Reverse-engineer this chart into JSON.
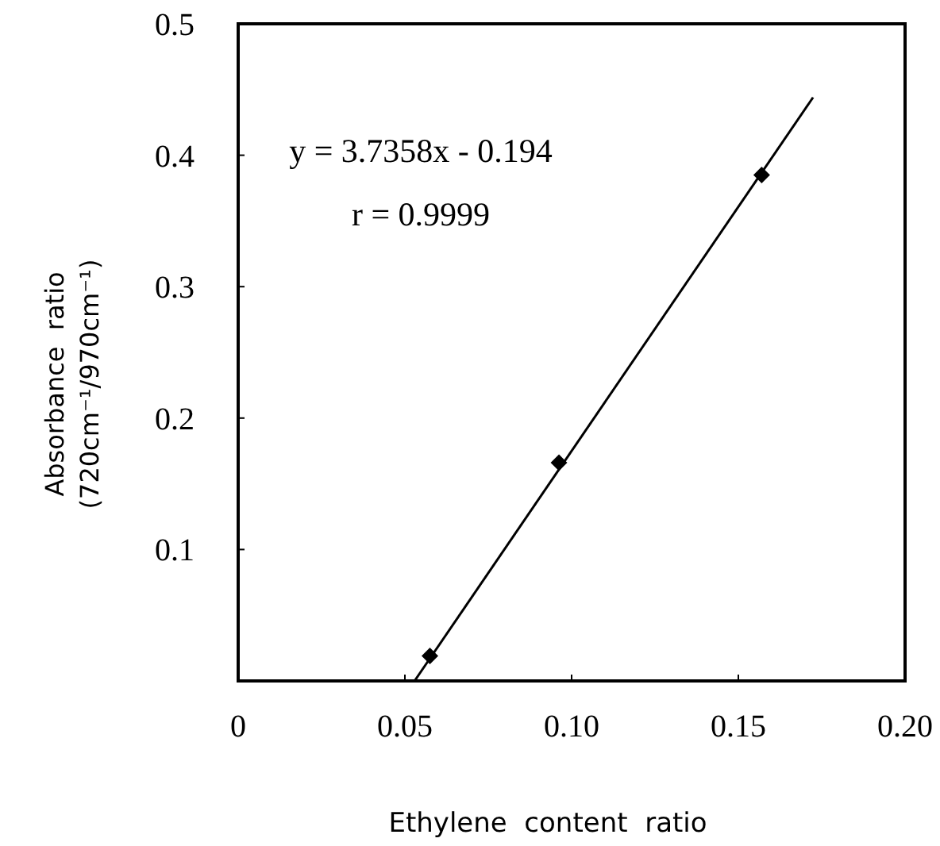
{
  "chart_data": {
    "type": "scatter",
    "xlabel": "Ethylene  content  ratio",
    "ylabel": "Absorbance  ratio\n(720cm⁻¹/970cm⁻¹)",
    "x": [
      0.0575,
      0.0962,
      0.157
    ],
    "series": [
      {
        "color": "#000000",
        "values": [
          0.019,
          0.166,
          0.385
        ],
        "marker": "diamond"
      },
      {
        "type": "line",
        "color": "#000000",
        "x": [
          0.0529,
          0.1724
        ],
        "values": [
          0,
          0.444
        ],
        "marker": "none"
      }
    ],
    "xlim": [
      0,
      0.2
    ],
    "ylim": [
      0,
      0.5
    ],
    "xticks": [
      0,
      {
        "value": 0.05,
        "label": "0.05"
      },
      {
        "value": 0.1,
        "label": "0.10"
      },
      {
        "value": 0.15,
        "label": "0.15"
      },
      {
        "value": 0.2,
        "label": "0.20"
      }
    ],
    "yticks": [
      0.1,
      0.2,
      0.3,
      0.4,
      0.5
    ],
    "annotations": [
      "y = 3.7358x - 0.194",
      "r = 0.9999"
    ],
    "grid": false
  }
}
